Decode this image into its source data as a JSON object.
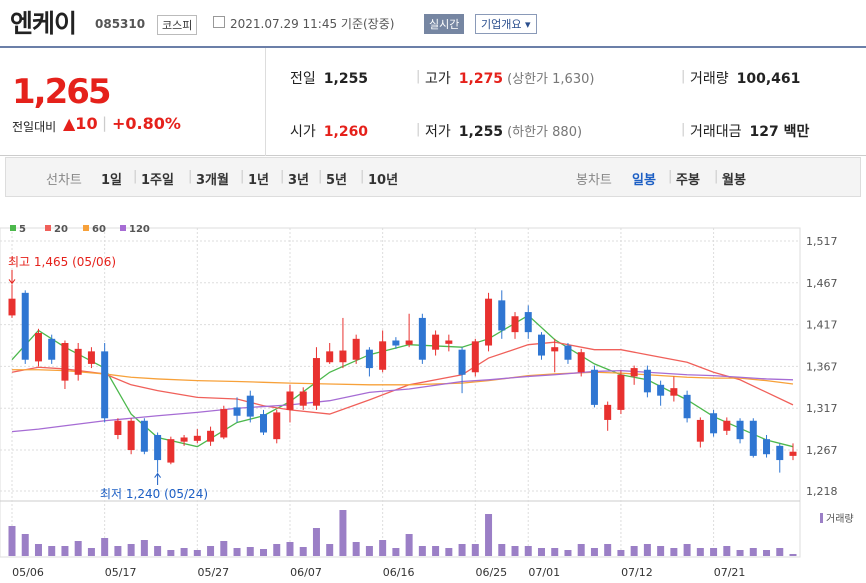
{
  "header": {
    "name": "엔케이",
    "code": "085310",
    "market": "코스피",
    "datetime": "2021.07.29 11:45 기준(장중)",
    "realtime": "실시간",
    "company_info": "기업개요"
  },
  "quote": {
    "price": "1,265",
    "change_label": "전일대비",
    "change": "▲10",
    "change_pct": "+0.80%",
    "fields": [
      {
        "label": "전일",
        "value": "1,255"
      },
      {
        "label": "고가",
        "value": "1,275",
        "note": "(상한가 1,630)",
        "color": "#e5211b"
      },
      {
        "label": "거래량",
        "value": "100,461"
      },
      {
        "label": "시가",
        "value": "1,260",
        "color": "#e5211b"
      },
      {
        "label": "저가",
        "value": "1,255",
        "note": "(하한가 880)"
      },
      {
        "label": "거래대금",
        "value": "127 백만"
      }
    ]
  },
  "tabs": {
    "line_label": "선차트",
    "line": [
      "1일",
      "1주일",
      "3개월",
      "1년",
      "3년",
      "5년",
      "10년"
    ],
    "candle_label": "봉차트",
    "candle": [
      "일봉",
      "주봉",
      "월봉"
    ]
  },
  "chart_data": {
    "type": "candlestick",
    "up_color": "#e8312f",
    "down_color": "#2f76d2",
    "categories": [
      "05/06",
      null,
      null,
      null,
      null,
      null,
      null,
      "05/17",
      null,
      null,
      null,
      null,
      null,
      null,
      "05/27",
      null,
      null,
      null,
      null,
      null,
      null,
      "06/07",
      null,
      null,
      null,
      null,
      null,
      null,
      "06/16",
      null,
      null,
      null,
      null,
      null,
      null,
      "06/25",
      null,
      null,
      null,
      "07/01",
      null,
      null,
      null,
      null,
      null,
      null,
      "07/12",
      null,
      null,
      null,
      null,
      null,
      null,
      "07/21",
      null,
      null,
      null,
      null,
      null,
      null
    ],
    "open": [
      1428,
      1455,
      1373,
      1400,
      1350,
      1357,
      1370,
      1385,
      1285,
      1267,
      1302,
      1285,
      1252,
      1277,
      1278,
      1277,
      1282,
      1318,
      1332,
      1310,
      1280,
      1315,
      1320,
      1320,
      1372,
      1372,
      1375,
      1387,
      1363,
      1398,
      1393,
      1425,
      1387,
      1394,
      1387,
      1360,
      1392,
      1446,
      1408,
      1432,
      1405,
      1385,
      1392,
      1360,
      1363,
      1303,
      1315,
      1355,
      1363,
      1345,
      1332,
      1333,
      1277,
      1311,
      1290,
      1302,
      1302,
      1280,
      1272,
      1260
    ],
    "high": [
      1465,
      1458,
      1412,
      1405,
      1398,
      1395,
      1390,
      1395,
      1305,
      1305,
      1305,
      1288,
      1283,
      1285,
      1292,
      1295,
      1320,
      1330,
      1338,
      1315,
      1315,
      1345,
      1342,
      1390,
      1395,
      1425,
      1405,
      1390,
      1410,
      1402,
      1430,
      1430,
      1410,
      1405,
      1390,
      1400,
      1455,
      1458,
      1432,
      1440,
      1408,
      1400,
      1395,
      1388,
      1368,
      1325,
      1362,
      1368,
      1368,
      1350,
      1355,
      1338,
      1306,
      1315,
      1306,
      1305,
      1305,
      1285,
      1275,
      1275
    ],
    "low": [
      1425,
      1370,
      1367,
      1370,
      1340,
      1350,
      1365,
      1300,
      1280,
      1262,
      1262,
      1240,
      1250,
      1272,
      1275,
      1272,
      1280,
      1300,
      1300,
      1285,
      1275,
      1300,
      1315,
      1315,
      1370,
      1365,
      1370,
      1355,
      1360,
      1388,
      1390,
      1370,
      1380,
      1385,
      1335,
      1355,
      1385,
      1400,
      1400,
      1400,
      1375,
      1360,
      1370,
      1355,
      1318,
      1290,
      1310,
      1345,
      1330,
      1320,
      1325,
      1300,
      1270,
      1283,
      1285,
      1275,
      1258,
      1258,
      1240,
      1255
    ],
    "close": [
      1448,
      1375,
      1407,
      1375,
      1395,
      1388,
      1385,
      1305,
      1302,
      1302,
      1265,
      1255,
      1280,
      1282,
      1284,
      1290,
      1316,
      1308,
      1307,
      1288,
      1312,
      1337,
      1337,
      1377,
      1385,
      1386,
      1400,
      1365,
      1397,
      1392,
      1398,
      1375,
      1405,
      1398,
      1357,
      1397,
      1448,
      1410,
      1427,
      1408,
      1380,
      1390,
      1375,
      1384,
      1321,
      1321,
      1357,
      1365,
      1336,
      1332,
      1341,
      1305,
      1303,
      1287,
      1302,
      1280,
      1260,
      1262,
      1255,
      1265
    ],
    "volume": [
      1500000,
      1100000,
      600000,
      500000,
      500000,
      750000,
      400000,
      900000,
      500000,
      600000,
      800000,
      500000,
      300000,
      400000,
      300000,
      500000,
      750000,
      400000,
      450000,
      350000,
      600000,
      700000,
      450000,
      1400000,
      600000,
      2300000,
      700000,
      500000,
      800000,
      400000,
      1100000,
      500000,
      500000,
      400000,
      600000,
      600000,
      2100000,
      600000,
      500000,
      500000,
      400000,
      400000,
      300000,
      600000,
      400000,
      600000,
      300000,
      500000,
      600000,
      500000,
      400000,
      600000,
      400000,
      400000,
      500000,
      300000,
      400000,
      300000,
      400000,
      100461
    ],
    "volume_color": "#9b7fc6",
    "volume_label": "거래량",
    "series": [
      {
        "name": "5",
        "color": "#4cb84c",
        "x": [
          0,
          2,
          4,
          7,
          9,
          11,
          14,
          17,
          19,
          21,
          24,
          27,
          30,
          34,
          36,
          39,
          41,
          44,
          46,
          48,
          51,
          53,
          55,
          57,
          59
        ],
        "values": [
          1375,
          1410,
          1390,
          1365,
          1310,
          1282,
          1271,
          1300,
          1308,
          1325,
          1360,
          1381,
          1393,
          1390,
          1400,
          1428,
          1399,
          1370,
          1357,
          1351,
          1327,
          1307,
          1293,
          1279,
          1271
        ]
      },
      {
        "name": "20",
        "color": "#f0605a",
        "x": [
          0,
          2,
          4,
          7,
          9,
          11,
          14,
          17,
          19,
          21,
          24,
          27,
          30,
          34,
          36,
          39,
          41,
          44,
          46,
          48,
          51,
          53,
          55,
          57,
          59
        ],
        "values": [
          1360,
          1366,
          1364,
          1358,
          1345,
          1338,
          1330,
          1328,
          1320,
          1315,
          1310,
          1327,
          1345,
          1357,
          1377,
          1393,
          1396,
          1387,
          1387,
          1381,
          1372,
          1360,
          1351,
          1336,
          1321
        ]
      },
      {
        "name": "60",
        "color": "#f7a13a",
        "x": [
          0,
          2,
          4,
          7,
          9,
          11,
          14,
          17,
          19,
          21,
          24,
          27,
          30,
          34,
          36,
          39,
          41,
          44,
          46,
          48,
          51,
          53,
          55,
          57,
          59
        ],
        "values": [
          1363,
          1363,
          1362,
          1358,
          1354,
          1352,
          1350,
          1349,
          1348,
          1347,
          1346,
          1345,
          1345,
          1347,
          1350,
          1356,
          1358,
          1360,
          1359,
          1357,
          1354,
          1353,
          1353,
          1350,
          1346
        ]
      },
      {
        "name": "120",
        "color": "#a66cd4",
        "x": [
          0,
          2,
          4,
          7,
          9,
          11,
          14,
          17,
          19,
          21,
          24,
          27,
          30,
          34,
          36,
          39,
          41,
          44,
          46,
          48,
          51,
          53,
          55,
          57,
          59
        ],
        "values": [
          1289,
          1292,
          1296,
          1302,
          1305,
          1308,
          1312,
          1317,
          1319,
          1321,
          1326,
          1336,
          1340,
          1349,
          1351,
          1355,
          1357,
          1361,
          1362,
          1360,
          1357,
          1356,
          1354,
          1352,
          1351
        ]
      }
    ],
    "ylim": [
      1218,
      1517
    ],
    "yticks": [
      {
        "value": 1517,
        "label": "1,517"
      },
      {
        "value": 1467,
        "label": "1,467"
      },
      {
        "value": 1417,
        "label": "1,417"
      },
      {
        "value": 1367,
        "label": "1,367"
      },
      {
        "value": 1317,
        "label": "1,317"
      },
      {
        "value": 1267,
        "label": "1,267"
      },
      {
        "value": 1218,
        "label": "1,218"
      }
    ],
    "grid": true,
    "high_label": "최고 1,465 (05/06)",
    "low_label": "최저 1,240 (05/24)"
  }
}
